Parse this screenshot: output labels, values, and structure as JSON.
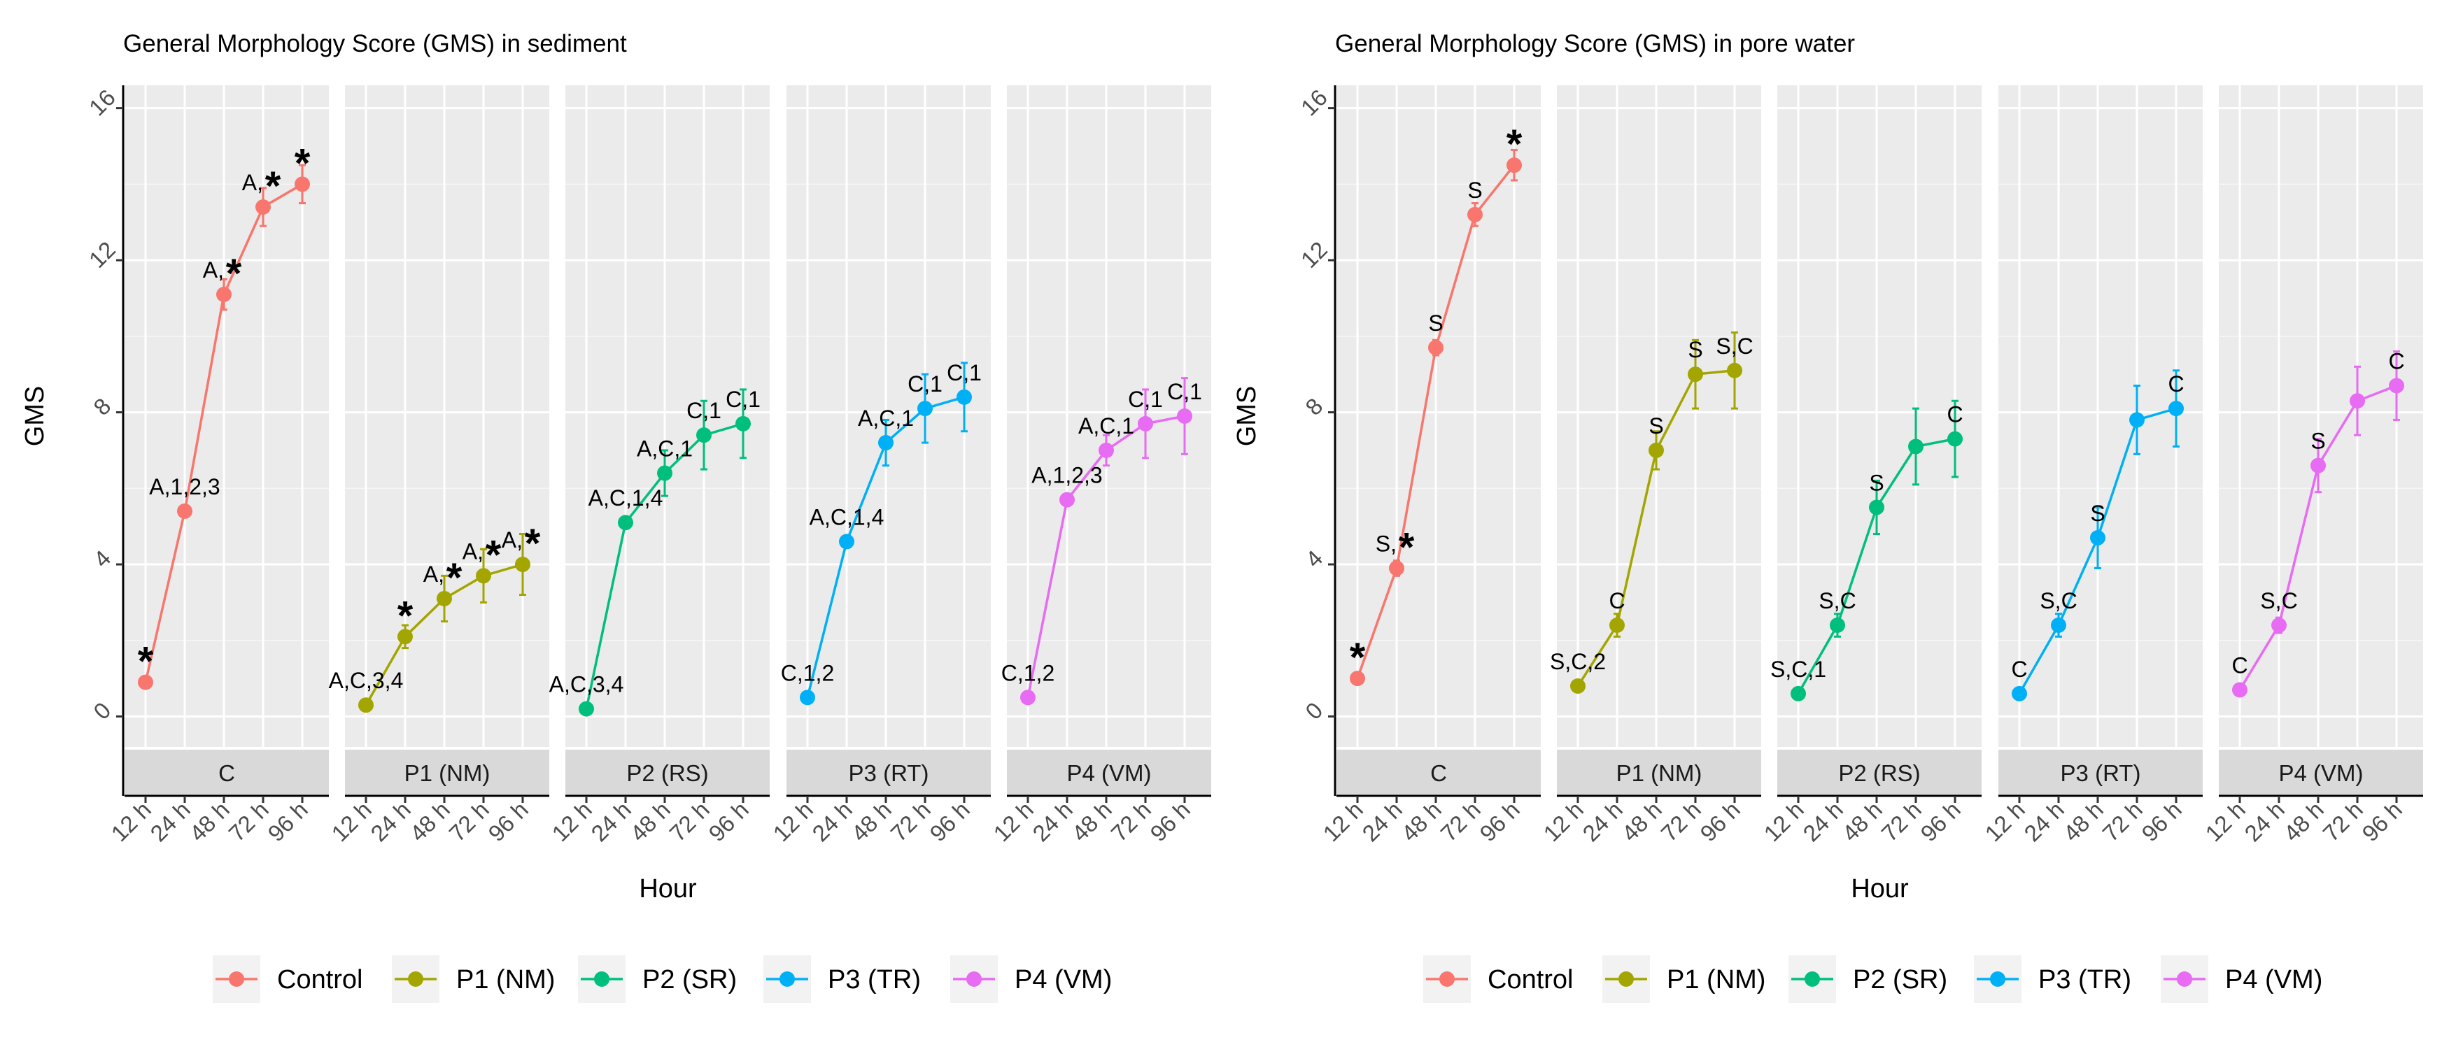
{
  "chart_data": [
    {
      "type": "line",
      "title": "General Morphology Score (GMS) in sediment",
      "xlabel": "Hour",
      "ylabel": "GMS",
      "ylim": [
        -0.8,
        16.6
      ],
      "yticks": [
        0,
        4,
        8,
        12,
        16
      ],
      "x": [
        "12 h",
        "24 h",
        "48 h",
        "72 h",
        "96 h"
      ],
      "grid": true,
      "legend_position": "bottom",
      "legend": [
        {
          "name": "Control",
          "color": "#F8766D"
        },
        {
          "name": "P1 (NM)",
          "color": "#A3A500"
        },
        {
          "name": "P2 (SR)",
          "color": "#00BF7D"
        },
        {
          "name": "P3 (TR)",
          "color": "#00B0F6"
        },
        {
          "name": "P4 (VM)",
          "color": "#E76BF3"
        }
      ],
      "facets": [
        {
          "strip": "C",
          "color": "#F8766D",
          "values": [
            0.9,
            5.4,
            11.1,
            13.4,
            14.0
          ],
          "error": [
            0.0,
            0.0,
            0.4,
            0.5,
            0.5
          ],
          "labels": [
            "",
            "A,1,2,3",
            "A,",
            "A,",
            ""
          ],
          "stars": [
            true,
            false,
            true,
            true,
            true
          ]
        },
        {
          "strip": "P1 (NM)",
          "color": "#A3A500",
          "values": [
            0.3,
            2.1,
            3.1,
            3.7,
            4.0
          ],
          "error": [
            0.0,
            0.3,
            0.6,
            0.7,
            0.8
          ],
          "labels": [
            "A,C,3,4",
            "",
            "A,",
            "A,",
            "A,"
          ],
          "stars": [
            false,
            true,
            true,
            true,
            true
          ]
        },
        {
          "strip": "P2 (RS)",
          "color": "#00BF7D",
          "values": [
            0.2,
            5.1,
            6.4,
            7.4,
            7.7
          ],
          "error": [
            0.0,
            0.0,
            0.6,
            0.9,
            0.9
          ],
          "labels": [
            "A,C,3,4",
            "A,C,1,4",
            "A,C,1",
            "C,1",
            "C,1"
          ],
          "stars": [
            false,
            false,
            false,
            false,
            false
          ]
        },
        {
          "strip": "P3 (RT)",
          "color": "#00B0F6",
          "values": [
            0.5,
            4.6,
            7.2,
            8.1,
            8.4
          ],
          "error": [
            0.0,
            0.0,
            0.6,
            0.9,
            0.9
          ],
          "labels": [
            "C,1,2",
            "A,C,1,4",
            "A,C,1",
            "C,1",
            "C,1"
          ],
          "stars": [
            false,
            false,
            false,
            false,
            false
          ]
        },
        {
          "strip": "P4 (VM)",
          "color": "#E76BF3",
          "values": [
            0.5,
            5.7,
            7.0,
            7.7,
            7.9
          ],
          "error": [
            0.0,
            0.0,
            0.4,
            0.9,
            1.0
          ],
          "labels": [
            "C,1,2",
            "A,1,2,3",
            "A,C,1",
            "C,1",
            "C,1"
          ],
          "stars": [
            false,
            false,
            false,
            false,
            false
          ]
        }
      ]
    },
    {
      "type": "line",
      "title": "General Morphology Score (GMS) in pore water",
      "xlabel": "Hour",
      "ylabel": "GMS",
      "ylim": [
        -0.8,
        16.6
      ],
      "yticks": [
        0,
        4,
        8,
        12,
        16
      ],
      "x": [
        "12 h",
        "24 h",
        "48 h",
        "72 h",
        "96 h"
      ],
      "grid": true,
      "legend_position": "bottom",
      "legend": [
        {
          "name": "Control",
          "color": "#F8766D"
        },
        {
          "name": "P1 (NM)",
          "color": "#A3A500"
        },
        {
          "name": "P2 (SR)",
          "color": "#00BF7D"
        },
        {
          "name": "P3 (TR)",
          "color": "#00B0F6"
        },
        {
          "name": "P4 (VM)",
          "color": "#E76BF3"
        }
      ],
      "facets": [
        {
          "strip": "C",
          "color": "#F8766D",
          "values": [
            1.0,
            3.9,
            9.7,
            13.2,
            14.5
          ],
          "error": [
            0.0,
            0.2,
            0.2,
            0.3,
            0.4
          ],
          "labels": [
            "",
            "S,",
            "S",
            "S",
            ""
          ],
          "stars": [
            true,
            true,
            false,
            false,
            true
          ]
        },
        {
          "strip": "P1 (NM)",
          "color": "#A3A500",
          "values": [
            0.8,
            2.4,
            7.0,
            9.0,
            9.1
          ],
          "error": [
            0.0,
            0.3,
            0.5,
            0.9,
            1.0
          ],
          "labels": [
            "S,C,2",
            "C",
            "S",
            "S",
            "S,C"
          ],
          "stars": [
            false,
            false,
            false,
            false,
            false
          ]
        },
        {
          "strip": "P2 (RS)",
          "color": "#00BF7D",
          "values": [
            0.6,
            2.4,
            5.5,
            7.1,
            7.3
          ],
          "error": [
            0.0,
            0.3,
            0.7,
            1.0,
            1.0
          ],
          "labels": [
            "S,C,1",
            "S,C",
            "S",
            "",
            "C"
          ],
          "stars": [
            false,
            false,
            false,
            false,
            false
          ]
        },
        {
          "strip": "P3 (RT)",
          "color": "#00B0F6",
          "values": [
            0.6,
            2.4,
            4.7,
            7.8,
            8.1
          ],
          "error": [
            0.0,
            0.3,
            0.8,
            0.9,
            1.0
          ],
          "labels": [
            "C",
            "S,C",
            "S",
            "",
            "C"
          ],
          "stars": [
            false,
            false,
            false,
            false,
            false
          ]
        },
        {
          "strip": "P4 (VM)",
          "color": "#E76BF3",
          "values": [
            0.7,
            2.4,
            6.6,
            8.3,
            8.7
          ],
          "error": [
            0.0,
            0.2,
            0.7,
            0.9,
            0.9
          ],
          "labels": [
            "C",
            "S,C",
            "S",
            "",
            "C"
          ],
          "stars": [
            false,
            false,
            false,
            false,
            false
          ]
        }
      ]
    }
  ]
}
